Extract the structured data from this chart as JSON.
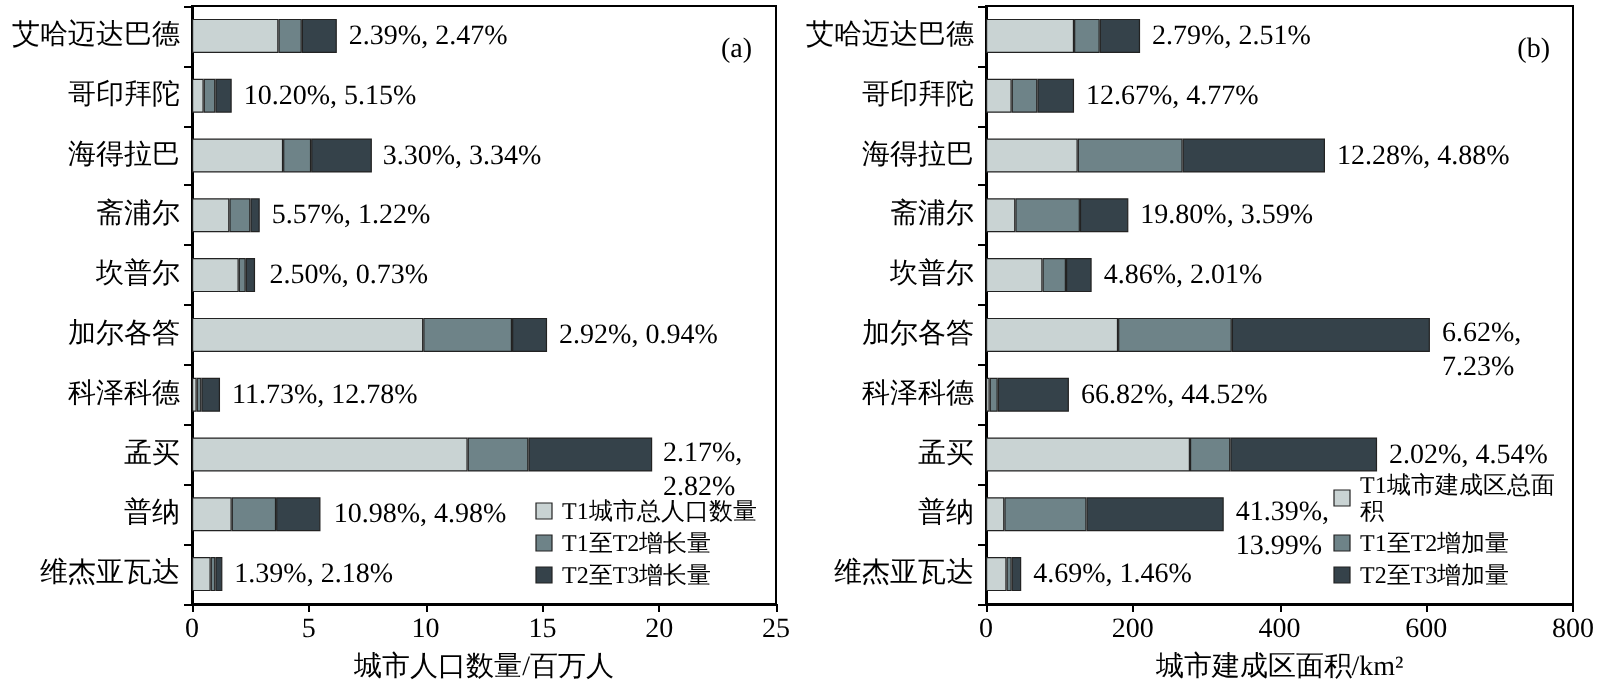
{
  "chart_data": [
    {
      "type": "bar",
      "orientation": "horizontal",
      "stacked": true,
      "xlabel": "城市人口数量/百万人",
      "categories": [
        "艾哈迈达巴德",
        "哥印拜陀",
        "海得拉巴",
        "斋浦尔",
        "坎普尔",
        "加尔各答",
        "科泽科德",
        "孟买",
        "普纳",
        "维杰亚瓦达"
      ],
      "series": [
        {
          "name": "T1城市总人口数量",
          "color": "#c9d3d3",
          "values": [
            3.7,
            0.5,
            3.9,
            1.6,
            2.0,
            9.9,
            0.2,
            11.8,
            1.7,
            0.8
          ]
        },
        {
          "name": "T1至T2增长量",
          "color": "#6e8388",
          "values": [
            1.0,
            0.5,
            1.2,
            0.9,
            0.3,
            3.8,
            0.2,
            2.6,
            1.9,
            0.2
          ]
        },
        {
          "name": "T2至T3增长量",
          "color": "#35424a",
          "values": [
            1.5,
            0.7,
            2.6,
            0.4,
            0.4,
            1.5,
            0.8,
            5.3,
            1.9,
            0.3
          ]
        }
      ],
      "xlim": [
        0,
        25
      ],
      "xticks": [
        0,
        5,
        10,
        15,
        20,
        25
      ],
      "grid": false,
      "legend": "bottom right",
      "annotations": [
        "(a)",
        {
          "text": "2.39%, 2.47%",
          "x": 6.2,
          "y": "艾哈迈达巴德"
        },
        {
          "text": "10.20%, 5.15%",
          "x": 1.7,
          "y": "哥印拜陀"
        },
        {
          "text": "3.30%, 3.34%",
          "x": 7.65,
          "y": "海得拉巴"
        },
        {
          "text": "5.57%, 1.22%",
          "x": 2.9,
          "y": "斋浦尔"
        },
        {
          "text": "2.50%, 0.73%",
          "x": 2.8,
          "y": "坎普尔"
        },
        {
          "text": "2.92%, 0.94%",
          "x": 15.2,
          "y": "加尔各答"
        },
        {
          "text": "11.73%, 12.78%",
          "x": 1.2,
          "y": "科泽科德"
        },
        {
          "text": "2.17%, 2.82%",
          "x": 19.65,
          "y": "孟买"
        },
        {
          "text": "10.98%, 4.98%",
          "x": 5.55,
          "y": "普纳"
        },
        {
          "text": "1.39%, 2.18%",
          "x": 1.3,
          "y": "维杰亚瓦达"
        }
      ]
    },
    {
      "type": "bar",
      "orientation": "horizontal",
      "stacked": true,
      "xlabel": "城市建成区面积/km²",
      "categories": [
        "艾哈迈达巴德",
        "哥印拜陀",
        "海得拉巴",
        "斋浦尔",
        "坎普尔",
        "加尔各答",
        "科泽科德",
        "孟买",
        "普纳",
        "维杰亚瓦达"
      ],
      "series": [
        {
          "name": "T1城市建成区总面积",
          "color": "#c9d3d3",
          "values": [
            120,
            35,
            125,
            40,
            77,
            180,
            5,
            278,
            25,
            28
          ]
        },
        {
          "name": "T1至T2增加量",
          "color": "#6e8388",
          "values": [
            35,
            35,
            143,
            88,
            32,
            155,
            11,
            55,
            112,
            7
          ]
        },
        {
          "name": "T2至T3增加量",
          "color": "#35424a",
          "values": [
            55,
            50,
            194,
            66,
            35,
            270,
            97,
            200,
            187,
            13
          ]
        }
      ],
      "xlim": [
        0,
        800
      ],
      "xticks": [
        0,
        200,
        400,
        600,
        800
      ],
      "grid": false,
      "legend": "bottom right",
      "annotations": [
        "(b)",
        {
          "text": "2.79%, 2.51%",
          "x": 210,
          "y": "艾哈迈达巴德"
        },
        {
          "text": "12.67%, 4.77%",
          "x": 120,
          "y": "哥印拜陀"
        },
        {
          "text": "12.28%, 4.88%",
          "x": 462,
          "y": "海得拉巴"
        },
        {
          "text": "19.80%, 3.59%",
          "x": 194,
          "y": "斋浦尔"
        },
        {
          "text": "4.86%, 2.01%",
          "x": 144,
          "y": "坎普尔"
        },
        {
          "text": "6.62%, 7.23%",
          "x": 605,
          "y": "加尔各答"
        },
        {
          "text": "66.82%, 44.52%",
          "x": 113,
          "y": "科泽科德"
        },
        {
          "text": "2.02%, 4.54%",
          "x": 533,
          "y": "孟买"
        },
        {
          "text": "41.39%, 13.99%",
          "x": 324,
          "y": "普纳"
        },
        {
          "text": "4.69%, 1.46%",
          "x": 48,
          "y": "维杰亚瓦达"
        }
      ]
    }
  ]
}
